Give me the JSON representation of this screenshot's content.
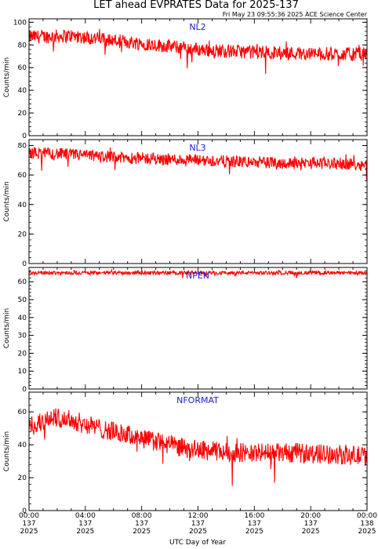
{
  "title": "LET ahead EVPRATES Data for 2025-137",
  "timestamp": "Fri May 23 09:55:36 2025 ACE Science Center",
  "xlabel": "UTC Day of Year",
  "x_ticks": [
    {
      "time": "00:00",
      "day": "137",
      "year": "2025"
    },
    {
      "time": "04:00",
      "day": "137",
      "year": "2025"
    },
    {
      "time": "08:00",
      "day": "137",
      "year": "2025"
    },
    {
      "time": "12:00",
      "day": "137",
      "year": "2025"
    },
    {
      "time": "16:00",
      "day": "137",
      "year": "2025"
    },
    {
      "time": "20:00",
      "day": "137",
      "year": "2025"
    },
    {
      "time": "00:00",
      "day": "138",
      "year": "2025"
    }
  ],
  "colors": {
    "series": "#ff0000",
    "panel_label": "#1c1ccc",
    "axes": "#000000"
  },
  "chart_data": [
    {
      "type": "line",
      "name": "NL2",
      "ylabel": "Counts/min",
      "ylim": [
        0,
        103
      ],
      "yticks": [
        0,
        20,
        40,
        60,
        80,
        100
      ],
      "xlim_hours": [
        0,
        24
      ],
      "trend": [
        [
          0,
          87
        ],
        [
          3,
          88
        ],
        [
          6,
          84
        ],
        [
          9,
          80
        ],
        [
          12,
          76
        ],
        [
          15,
          74
        ],
        [
          18,
          73
        ],
        [
          21,
          72
        ],
        [
          24,
          72
        ]
      ],
      "noise_amplitude": 6
    },
    {
      "type": "line",
      "name": "NL3",
      "ylabel": "Counts/min",
      "ylim": [
        0,
        84
      ],
      "yticks": [
        0,
        20,
        40,
        60,
        80
      ],
      "xlim_hours": [
        0,
        24
      ],
      "trend": [
        [
          0,
          75
        ],
        [
          3,
          74
        ],
        [
          6,
          72
        ],
        [
          9,
          71
        ],
        [
          12,
          70
        ],
        [
          15,
          69
        ],
        [
          18,
          68
        ],
        [
          21,
          68
        ],
        [
          24,
          67
        ]
      ],
      "noise_amplitude": 4
    },
    {
      "type": "line",
      "name": "NPEN",
      "ylabel": "Counts/min",
      "ylim": [
        0,
        68
      ],
      "yticks": [
        0,
        10,
        20,
        30,
        40,
        50,
        60
      ],
      "xlim_hours": [
        0,
        24
      ],
      "trend": [
        [
          0,
          65
        ],
        [
          6,
          65
        ],
        [
          12,
          65
        ],
        [
          18,
          65
        ],
        [
          24,
          65
        ]
      ],
      "noise_amplitude": 1
    },
    {
      "type": "line",
      "name": "NFORMAT",
      "ylabel": "Counts/min",
      "ylim": [
        0,
        72
      ],
      "yticks": [
        0,
        20,
        40,
        60
      ],
      "xlim_hours": [
        0,
        24
      ],
      "trend": [
        [
          0,
          50
        ],
        [
          1,
          54
        ],
        [
          2,
          57
        ],
        [
          3,
          55
        ],
        [
          5,
          50
        ],
        [
          7,
          46
        ],
        [
          9,
          42
        ],
        [
          11,
          38
        ],
        [
          13,
          36
        ],
        [
          16,
          35
        ],
        [
          19,
          35
        ],
        [
          22,
          34
        ],
        [
          24,
          33
        ]
      ],
      "noise_amplitude": 6
    }
  ]
}
